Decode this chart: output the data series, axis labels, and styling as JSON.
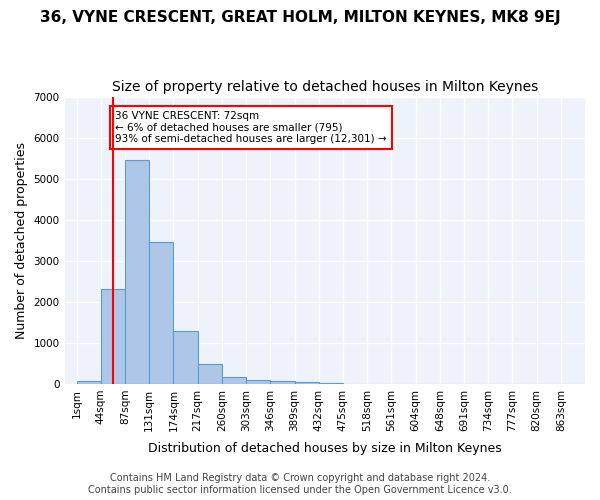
{
  "title": "36, VYNE CRESCENT, GREAT HOLM, MILTON KEYNES, MK8 9EJ",
  "subtitle": "Size of property relative to detached houses in Milton Keynes",
  "xlabel": "Distribution of detached houses by size in Milton Keynes",
  "ylabel": "Number of detached properties",
  "footer1": "Contains HM Land Registry data © Crown copyright and database right 2024.",
  "footer2": "Contains public sector information licensed under the Open Government Licence v3.0.",
  "bin_labels": [
    "1sqm",
    "44sqm",
    "87sqm",
    "131sqm",
    "174sqm",
    "217sqm",
    "260sqm",
    "303sqm",
    "346sqm",
    "389sqm",
    "432sqm",
    "475sqm",
    "518sqm",
    "561sqm",
    "604sqm",
    "648sqm",
    "691sqm",
    "734sqm",
    "777sqm",
    "820sqm",
    "863sqm"
  ],
  "bar_values": [
    80,
    2300,
    5450,
    3450,
    1300,
    480,
    160,
    90,
    60,
    35,
    10,
    5,
    3,
    2,
    1,
    1,
    0,
    0,
    0,
    0,
    0
  ],
  "bar_color": "#aec6e8",
  "bar_edge_color": "#5b9bd5",
  "annotation_text": "36 VYNE CRESCENT: 72sqm\n← 6% of detached houses are smaller (795)\n93% of semi-detached houses are larger (12,301) →",
  "annotation_box_color": "white",
  "annotation_box_edge": "red",
  "vline_x_index": 1.5,
  "vline_color": "red",
  "ylim": [
    0,
    7000
  ],
  "yticks": [
    0,
    1000,
    2000,
    3000,
    4000,
    5000,
    6000,
    7000
  ],
  "bg_color": "#eef3fb",
  "grid_color": "white",
  "title_fontsize": 11,
  "subtitle_fontsize": 10,
  "axis_label_fontsize": 9,
  "tick_fontsize": 7.5,
  "footer_fontsize": 7
}
